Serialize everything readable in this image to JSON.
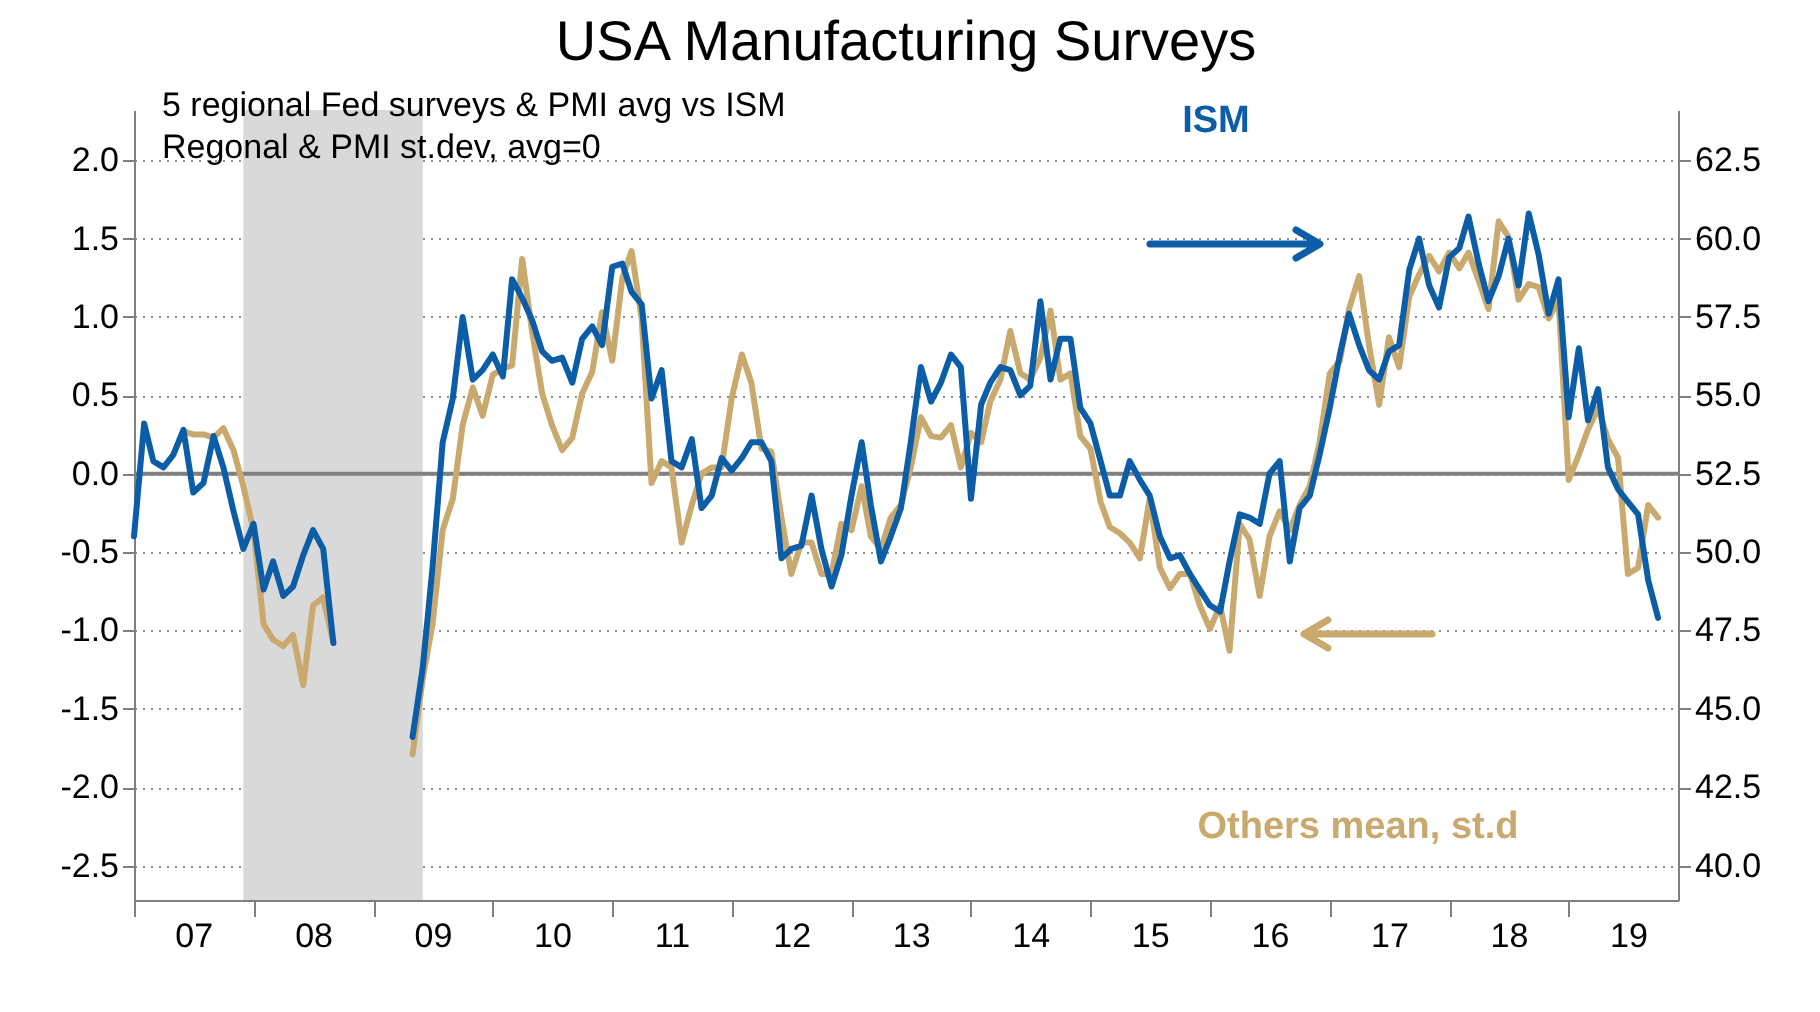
{
  "chart_data": {
    "type": "line",
    "title": "USA Manufacturing Surveys",
    "annotations": [
      "5 regional Fed surveys & PMI avg vs ISM",
      "Regonal & PMI st.dev, avg=0"
    ],
    "x": [
      "2007-01",
      "2007-02",
      "2007-03",
      "2007-04",
      "2007-05",
      "2007-06",
      "2007-07",
      "2007-08",
      "2007-09",
      "2007-10",
      "2007-11",
      "2007-12",
      "2008-01",
      "2008-02",
      "2008-03",
      "2008-04",
      "2008-05",
      "2008-06",
      "2008-07",
      "2008-08",
      "2008-09",
      "2008-10",
      "2008-11",
      "2008-12",
      "2009-01",
      "2009-02",
      "2009-03",
      "2009-04",
      "2009-05",
      "2009-06",
      "2009-07",
      "2009-08",
      "2009-09",
      "2009-10",
      "2009-11",
      "2009-12",
      "2010-01",
      "2010-02",
      "2010-03",
      "2010-04",
      "2010-05",
      "2010-06",
      "2010-07",
      "2010-08",
      "2010-09",
      "2010-10",
      "2010-11",
      "2010-12",
      "2011-01",
      "2011-02",
      "2011-03",
      "2011-04",
      "2011-05",
      "2011-06",
      "2011-07",
      "2011-08",
      "2011-09",
      "2011-10",
      "2011-11",
      "2011-12",
      "2012-01",
      "2012-02",
      "2012-03",
      "2012-04",
      "2012-05",
      "2012-06",
      "2012-07",
      "2012-08",
      "2012-09",
      "2012-10",
      "2012-11",
      "2012-12",
      "2013-01",
      "2013-02",
      "2013-03",
      "2013-04",
      "2013-05",
      "2013-06",
      "2013-07",
      "2013-08",
      "2013-09",
      "2013-10",
      "2013-11",
      "2013-12",
      "2014-01",
      "2014-02",
      "2014-03",
      "2014-04",
      "2014-05",
      "2014-06",
      "2014-07",
      "2014-08",
      "2014-09",
      "2014-10",
      "2014-11",
      "2014-12",
      "2015-01",
      "2015-02",
      "2015-03",
      "2015-04",
      "2015-05",
      "2015-06",
      "2015-07",
      "2015-08",
      "2015-09",
      "2015-10",
      "2015-11",
      "2015-12",
      "2016-01",
      "2016-02",
      "2016-03",
      "2016-04",
      "2016-05",
      "2016-06",
      "2016-07",
      "2016-08",
      "2016-09",
      "2016-10",
      "2016-11",
      "2016-12",
      "2017-01",
      "2017-02",
      "2017-03",
      "2017-04",
      "2017-05",
      "2017-06",
      "2017-07",
      "2017-08",
      "2017-09",
      "2017-10",
      "2017-11",
      "2017-12",
      "2018-01",
      "2018-02",
      "2018-03",
      "2018-04",
      "2018-05",
      "2018-06",
      "2018-07",
      "2018-08",
      "2018-09",
      "2018-10",
      "2018-11",
      "2018-12",
      "2019-01",
      "2019-02",
      "2019-03",
      "2019-04",
      "2019-05",
      "2019-06",
      "2019-07",
      "2019-08",
      "2019-09",
      "2019-10"
    ],
    "series": [
      {
        "name": "Others mean, st.d",
        "color": "#c9a96e",
        "values": [
          null,
          null,
          null,
          null,
          null,
          0.27,
          0.25,
          0.25,
          0.23,
          0.29,
          0.15,
          -0.08,
          -0.36,
          -0.96,
          -1.06,
          -1.1,
          -1.03,
          -1.35,
          -0.84,
          -0.79,
          -1.08,
          null,
          null,
          null,
          null,
          null,
          null,
          null,
          -1.79,
          -1.31,
          -0.96,
          -0.36,
          -0.16,
          0.31,
          0.55,
          0.37,
          0.63,
          0.67,
          0.69,
          1.37,
          0.91,
          0.51,
          0.31,
          0.15,
          0.23,
          0.51,
          0.65,
          1.03,
          0.72,
          1.25,
          1.42,
          0.99,
          -0.06,
          0.08,
          0.04,
          -0.44,
          -0.2,
          0.0,
          0.04,
          0.04,
          0.48,
          0.76,
          0.58,
          0.16,
          0.14,
          -0.28,
          -0.64,
          -0.44,
          -0.44,
          -0.64,
          -0.64,
          -0.32,
          -0.36,
          -0.08,
          -0.4,
          -0.48,
          -0.28,
          -0.2,
          0.04,
          0.36,
          0.24,
          0.23,
          0.31,
          0.04,
          0.26,
          0.2,
          0.46,
          0.6,
          0.91,
          0.64,
          0.6,
          0.74,
          1.04,
          0.6,
          0.64,
          0.24,
          0.16,
          -0.18,
          -0.34,
          -0.38,
          -0.44,
          -0.54,
          -0.16,
          -0.6,
          -0.73,
          -0.64,
          -0.64,
          -0.84,
          -0.99,
          -0.84,
          -1.13,
          -0.32,
          -0.42,
          -0.78,
          -0.4,
          -0.24,
          -0.36,
          -0.2,
          -0.08,
          0.2,
          0.64,
          0.72,
          1.05,
          1.26,
          0.82,
          0.44,
          0.87,
          0.68,
          1.13,
          1.27,
          1.39,
          1.29,
          1.41,
          1.31,
          1.41,
          1.23,
          1.05,
          1.61,
          1.51,
          1.11,
          1.21,
          1.19,
          0.99,
          1.11,
          -0.04,
          0.12,
          0.28,
          0.42,
          0.22,
          0.1,
          -0.64,
          -0.6,
          -0.2,
          -0.28
        ]
      },
      {
        "name": "ISM",
        "color": "#0a5da6",
        "axis": "y2",
        "values": [
          50.5,
          54.1,
          52.9,
          52.7,
          53.1,
          53.9,
          51.9,
          52.2,
          53.7,
          52.7,
          51.3,
          50.1,
          50.9,
          48.8,
          49.7,
          48.6,
          48.9,
          49.9,
          50.7,
          50.1,
          47.1,
          null,
          null,
          null,
          null,
          null,
          null,
          null,
          44.1,
          46.3,
          49.5,
          53.5,
          54.9,
          57.5,
          55.5,
          55.8,
          56.3,
          55.6,
          58.7,
          58.1,
          57.4,
          56.4,
          56.1,
          56.2,
          55.4,
          56.8,
          57.2,
          56.6,
          59.1,
          59.2,
          58.3,
          57.9,
          54.9,
          55.8,
          52.9,
          52.7,
          53.6,
          51.4,
          51.8,
          53.0,
          52.6,
          53.0,
          53.5,
          53.5,
          52.9,
          49.8,
          50.1,
          50.2,
          51.8,
          50.1,
          48.9,
          49.9,
          51.8,
          53.5,
          51.5,
          49.7,
          50.5,
          51.4,
          53.5,
          55.9,
          54.8,
          55.4,
          56.3,
          55.9,
          51.7,
          54.7,
          55.4,
          55.9,
          55.8,
          55.0,
          55.3,
          58.0,
          55.5,
          56.8,
          56.8,
          54.6,
          54.1,
          52.9,
          51.8,
          51.8,
          52.9,
          52.3,
          51.8,
          50.5,
          49.8,
          49.9,
          49.3,
          48.8,
          48.3,
          48.1,
          49.7,
          51.2,
          51.1,
          50.9,
          52.5,
          52.9,
          49.7,
          51.4,
          51.8,
          53.1,
          54.6,
          56.3,
          57.6,
          56.6,
          55.8,
          55.5,
          56.4,
          56.6,
          59.0,
          60.0,
          58.5,
          57.8,
          59.4,
          59.7,
          60.7,
          59.2,
          58.0,
          58.8,
          60.0,
          58.5,
          60.8,
          59.5,
          57.6,
          58.7,
          54.3,
          56.5,
          54.2,
          55.2,
          52.7,
          52.0,
          51.6,
          51.2,
          49.1,
          47.9
        ]
      }
    ],
    "xlim": [
      "2007-01",
      "2019-12"
    ],
    "xticks": [
      {
        "value": "2007-01",
        "label": null
      },
      {
        "value": "2007-07",
        "label": "07"
      },
      {
        "value": "2008-01",
        "label": null
      },
      {
        "value": "2008-07",
        "label": "08"
      },
      {
        "value": "2009-01",
        "label": null
      },
      {
        "value": "2009-07",
        "label": "09"
      },
      {
        "value": "2010-01",
        "label": null
      },
      {
        "value": "2010-07",
        "label": "10"
      },
      {
        "value": "2011-01",
        "label": null
      },
      {
        "value": "2011-07",
        "label": "11"
      },
      {
        "value": "2012-01",
        "label": null
      },
      {
        "value": "2012-07",
        "label": "12"
      },
      {
        "value": "2013-01",
        "label": null
      },
      {
        "value": "2013-07",
        "label": "13"
      },
      {
        "value": "2014-01",
        "label": null
      },
      {
        "value": "2014-07",
        "label": "14"
      },
      {
        "value": "2015-01",
        "label": null
      },
      {
        "value": "2015-07",
        "label": "15"
      },
      {
        "value": "2016-01",
        "label": null
      },
      {
        "value": "2016-07",
        "label": "16"
      },
      {
        "value": "2017-01",
        "label": null
      },
      {
        "value": "2017-07",
        "label": "17"
      },
      {
        "value": "2018-01",
        "label": null
      },
      {
        "value": "2018-07",
        "label": "18"
      },
      {
        "value": "2019-01",
        "label": null
      },
      {
        "value": "2019-07",
        "label": "19"
      }
    ],
    "ylim": [
      -2.72,
      2.32
    ],
    "yticks": [
      {
        "value": -2.5,
        "label": "-2.5"
      },
      {
        "value": -2,
        "label": "-2.0"
      },
      {
        "value": -1.5,
        "label": "-1.5"
      },
      {
        "value": -1,
        "label": "-1.0"
      },
      {
        "value": -0.5,
        "label": "-0.5"
      },
      {
        "value": 0,
        "label": "0.0"
      },
      {
        "value": 0.5,
        "label": "0.5"
      },
      {
        "value": 1,
        "label": "1.0"
      },
      {
        "value": 1.5,
        "label": "1.5"
      },
      {
        "value": 2,
        "label": "2.0"
      }
    ],
    "y2lim": [
      38.9,
      64.1
    ],
    "y2ticks": [
      {
        "value": 40,
        "label": "40.0"
      },
      {
        "value": 42.5,
        "label": "42.5"
      },
      {
        "value": 45,
        "label": "45.0"
      },
      {
        "value": 47.5,
        "label": "47.5"
      },
      {
        "value": 50,
        "label": "50.0"
      },
      {
        "value": 52.5,
        "label": "52.5"
      },
      {
        "value": 55,
        "label": "55.0"
      },
      {
        "value": 57.5,
        "label": "57.5"
      },
      {
        "value": 60,
        "label": "60.0"
      },
      {
        "value": 62.5,
        "label": "62.5"
      }
    ],
    "bands": [
      {
        "axis": "x",
        "from": "2007-12",
        "to": "2009-06",
        "color": "#d9d9d9"
      }
    ],
    "ref_lines": [
      {
        "axis": "y",
        "value": 0,
        "color": "#808080"
      }
    ],
    "grid": "y"
  }
}
